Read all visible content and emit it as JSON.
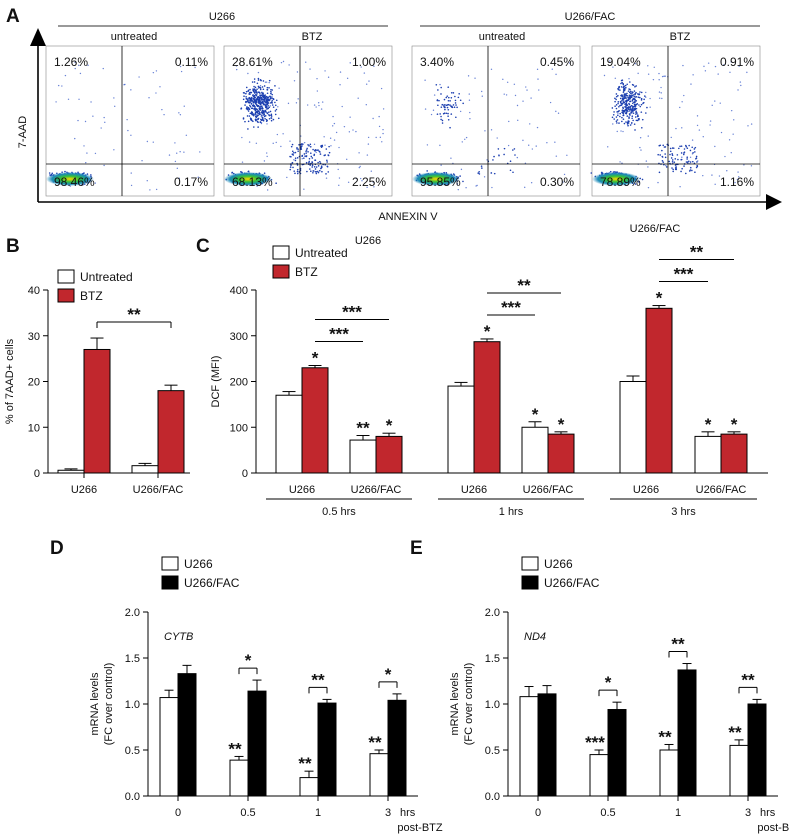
{
  "panels": {
    "A": {
      "label": "A",
      "groups": [
        {
          "name": "U266",
          "conditions": [
            "untreated",
            "BTZ"
          ]
        },
        {
          "name": "U266/FAC",
          "conditions": [
            "untreated",
            "BTZ"
          ]
        }
      ],
      "ylabel": "7-AAD",
      "xlabel": "ANNEXIN V",
      "plots": [
        {
          "tl": "1.26%",
          "tr": "0.11%",
          "bl": "98.46%",
          "br": "0.17%"
        },
        {
          "tl": "28.61%",
          "tr": "1.00%",
          "bl": "68.13%",
          "br": "2.25%"
        },
        {
          "tl": "3.40%",
          "tr": "0.45%",
          "bl": "95.85%",
          "br": "0.30%"
        },
        {
          "tl": "19.04%",
          "tr": "0.91%",
          "bl": "78.89%",
          "br": "1.16%"
        }
      ]
    }
  },
  "chart_data": [
    {
      "id": "B",
      "label": "B",
      "type": "bar",
      "ylabel": "% of 7AAD+ cells",
      "ylim": [
        0,
        40
      ],
      "yticks": [
        0,
        10,
        20,
        30,
        40
      ],
      "categories": [
        "U266",
        "U266/FAC"
      ],
      "series": [
        {
          "name": "Untreated",
          "values": [
            0.6,
            1.6
          ],
          "errors": [
            0.3,
            0.5
          ],
          "color": "#ffffff"
        },
        {
          "name": "BTZ",
          "values": [
            27.0,
            18.0
          ],
          "errors": [
            2.5,
            1.2
          ],
          "color": "#c1272d"
        }
      ],
      "comparisons": [
        {
          "text": "**"
        }
      ]
    },
    {
      "id": "C",
      "label": "C",
      "type": "bar",
      "ylabel": "DCF (MFI)",
      "ylim": [
        0,
        400
      ],
      "yticks": [
        0,
        100,
        200,
        300,
        400
      ],
      "extra_labels": [
        "U266",
        "U266/FAC"
      ],
      "groups": [
        {
          "name": "0.5 hrs",
          "categories": [
            "U266",
            "U266/FAC"
          ]
        },
        {
          "name": "1 hrs",
          "categories": [
            "U266",
            "U266/FAC"
          ]
        },
        {
          "name": "3 hrs",
          "categories": [
            "U266",
            "U266/FAC"
          ]
        }
      ],
      "series": [
        {
          "name": "Untreated",
          "color": "#ffffff",
          "values": [
            170,
            72,
            190,
            100,
            200,
            80
          ],
          "errors": [
            8,
            10,
            8,
            12,
            12,
            10
          ],
          "stars": [
            "",
            "**",
            "",
            "*",
            "",
            "*"
          ]
        },
        {
          "name": "BTZ",
          "color": "#c1272d",
          "values": [
            230,
            80,
            287,
            85,
            360,
            85
          ],
          "errors": [
            5,
            7,
            6,
            5,
            6,
            5
          ],
          "stars": [
            "*",
            "*",
            "*",
            "*",
            "*",
            "*"
          ]
        }
      ],
      "comparisons": [
        {
          "text": "***"
        },
        {
          "text": "***"
        },
        {
          "text": "***"
        },
        {
          "text": "**"
        },
        {
          "text": "***"
        },
        {
          "text": "**"
        }
      ]
    },
    {
      "id": "D",
      "label": "D",
      "type": "bar",
      "gene": "CYTB",
      "ylabel": [
        "mRNA levels",
        "(FC over control)"
      ],
      "ylim": [
        0,
        2.0
      ],
      "yticks": [
        "0.0",
        "0.5",
        "1.0",
        "1.5",
        "2.0"
      ],
      "categories": [
        "0",
        "0.5",
        "1",
        "3"
      ],
      "x_unit": "hrs",
      "x_unit2": "post-BTZ",
      "series": [
        {
          "name": "U266",
          "color": "#ffffff",
          "values": [
            1.07,
            0.39,
            0.2,
            0.46
          ],
          "errors": [
            0.08,
            0.04,
            0.07,
            0.04
          ],
          "stars": [
            "",
            "**",
            "**",
            "**"
          ]
        },
        {
          "name": "U266/FAC",
          "color": "#000000",
          "values": [
            1.33,
            1.14,
            1.01,
            1.04
          ],
          "errors": [
            0.09,
            0.12,
            0.04,
            0.07
          ],
          "stars": [
            "",
            "",
            "",
            ""
          ]
        }
      ],
      "comparisons": [
        "",
        "*",
        "**",
        "*"
      ]
    },
    {
      "id": "E",
      "label": "E",
      "type": "bar",
      "gene": "ND4",
      "ylabel": [
        "mRNA levels",
        "(FC over control)"
      ],
      "ylim": [
        0,
        2.0
      ],
      "yticks": [
        "0.0",
        "0.5",
        "1.0",
        "1.5",
        "2.0"
      ],
      "categories": [
        "0",
        "0.5",
        "1",
        "3"
      ],
      "x_unit": "hrs",
      "x_unit2": "post-BTZ",
      "series": [
        {
          "name": "U266",
          "color": "#ffffff",
          "values": [
            1.08,
            0.45,
            0.5,
            0.55
          ],
          "errors": [
            0.11,
            0.05,
            0.06,
            0.06
          ],
          "stars": [
            "",
            "***",
            "**",
            "**"
          ]
        },
        {
          "name": "U266/FAC",
          "color": "#000000",
          "values": [
            1.11,
            0.94,
            1.37,
            1.0
          ],
          "errors": [
            0.09,
            0.08,
            0.07,
            0.05
          ],
          "stars": [
            "",
            "",
            "",
            ""
          ]
        }
      ],
      "comparisons": [
        "",
        "*",
        "**",
        "**"
      ]
    }
  ]
}
